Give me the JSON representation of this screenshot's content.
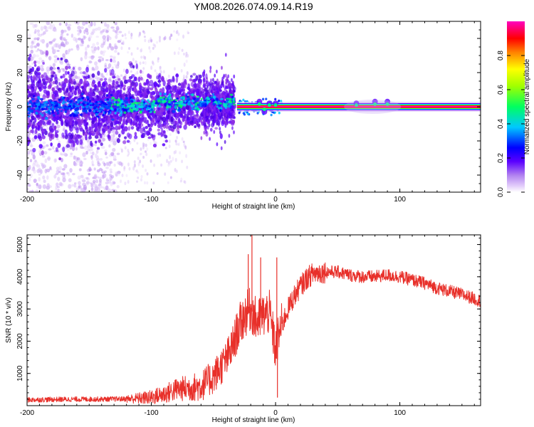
{
  "title": "YM08.2026.074.09.14.R19",
  "chart_data": [
    {
      "type": "heatmap",
      "xlabel": "Height of straight line (km)",
      "ylabel": "Frequency (Hz)",
      "xlim": [
        -200,
        165
      ],
      "ylim": [
        -50,
        50
      ],
      "xticks": [
        -200,
        -100,
        0,
        100
      ],
      "xtick_labels": [
        "-200",
        "-100",
        "0",
        "100"
      ],
      "yticks": [
        -40,
        -20,
        0,
        20,
        40
      ],
      "ytick_labels": [
        "-40",
        "-20",
        "0",
        "20",
        "40"
      ],
      "colorbar": {
        "label": "Normalized spectral amplitude",
        "range": [
          0,
          1
        ],
        "ticks": [
          0,
          0.2,
          0.4,
          0.6,
          0.8
        ],
        "tick_labels": [
          "0.0",
          "0.2",
          "0.4",
          "0.6",
          "0.8"
        ],
        "colors": [
          "#ffffff",
          "#d8b8f8",
          "#8a2be2",
          "#5a00ff",
          "#0000ff",
          "#00ffff",
          "#00ff00",
          "#ffff00",
          "#ff8000",
          "#ff0000",
          "#ff00ff"
        ]
      },
      "segments": [
        {
          "x": [
            -200,
            -125
          ],
          "description_value": "scattered noise",
          "spread_hz": 45
        },
        {
          "x": [
            -125,
            -33
          ],
          "spread_hz": 12,
          "center_hz": 1
        },
        {
          "x": [
            -30,
            5
          ],
          "spread_hz": 3,
          "center_hz": 0
        },
        {
          "x": [
            5,
            165
          ],
          "spread_hz": 1,
          "center_hz": 0
        }
      ]
    },
    {
      "type": "line",
      "xlabel": "Height of straight line (km)",
      "ylabel": "SNR (10 * v/v)",
      "xlim": [
        -200,
        165
      ],
      "ylim": [
        0,
        5300
      ],
      "xticks": [
        -200,
        -100,
        0,
        100
      ],
      "xtick_labels": [
        "-200",
        "-100",
        "0",
        "100"
      ],
      "yticks": [
        1000,
        2000,
        3000,
        4000,
        5000
      ],
      "ytick_labels": [
        "1000",
        "2000",
        "3000",
        "4000",
        "5000"
      ],
      "color": "#e8302a",
      "series": [
        {
          "name": "SNR",
          "x": [
            -200,
            -180,
            -160,
            -140,
            -120,
            -100,
            -90,
            -80,
            -70,
            -60,
            -50,
            -40,
            -35,
            -30,
            -25,
            -20,
            -15,
            -10,
            -5,
            -2,
            0,
            2,
            5,
            10,
            15,
            20,
            25,
            30,
            40,
            50,
            60,
            70,
            80,
            90,
            100,
            110,
            120,
            130,
            140,
            150,
            165
          ],
          "y": [
            180,
            190,
            200,
            200,
            210,
            250,
            350,
            500,
            550,
            600,
            900,
            1400,
            1800,
            2400,
            2800,
            3000,
            2600,
            2800,
            2900,
            2200,
            1700,
            2100,
            2500,
            3000,
            3400,
            3700,
            3950,
            4100,
            4150,
            4150,
            4050,
            4000,
            4000,
            4050,
            4000,
            3900,
            3800,
            3650,
            3550,
            3450,
            3250
          ]
        }
      ],
      "spikes": [
        {
          "x": -19,
          "y": 5300
        },
        {
          "x": -22,
          "y": 4700
        },
        {
          "x": -12,
          "y": 4600
        },
        {
          "x": 1,
          "y": 4600
        },
        {
          "x": 1.5,
          "y": 250
        }
      ]
    }
  ]
}
